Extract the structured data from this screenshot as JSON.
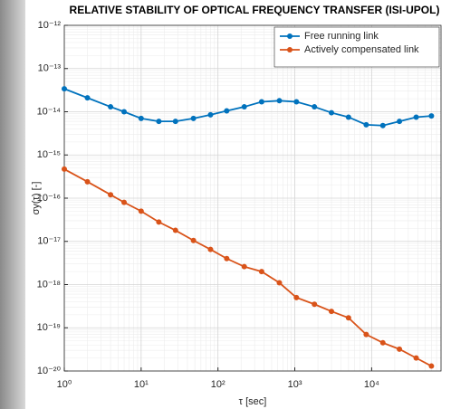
{
  "chart_data": {
    "type": "line",
    "title": "RELATIVE STABILITY OF OPTICAL FREQUENCY TRANSFER (ISI-UPOL)",
    "x_label": "τ [sec]",
    "y_label": "σy(τ) [-]",
    "x": [
      1,
      2,
      4,
      6,
      10,
      17,
      28,
      48,
      80,
      130,
      220,
      370,
      630,
      1050,
      1800,
      3000,
      5000,
      8500,
      14000,
      23000,
      38000,
      60000
    ],
    "series": [
      {
        "name": "Free running link",
        "color": "#0072bd",
        "values": [
          3.4e-14,
          2.1e-14,
          1.3e-14,
          1e-14,
          7e-15,
          6e-15,
          6e-15,
          7e-15,
          8.5e-15,
          1.05e-14,
          1.3e-14,
          1.7e-14,
          1.8e-14,
          1.7e-14,
          1.3e-14,
          9.5e-15,
          7.5e-15,
          5e-15,
          4.8e-15,
          6e-15,
          7.5e-15,
          8e-15
        ]
      },
      {
        "name": "Actively compensated link",
        "color": "#d95319",
        "values": [
          4.7e-16,
          2.4e-16,
          1.2e-16,
          8e-17,
          5e-17,
          2.8e-17,
          1.8e-17,
          1.05e-17,
          6.5e-18,
          4e-18,
          2.6e-18,
          2e-18,
          1.1e-18,
          5e-19,
          3.5e-19,
          2.4e-19,
          1.7e-19,
          7e-20,
          4.5e-20,
          3.2e-20,
          2e-20,
          1.3e-20
        ]
      }
    ],
    "x_log": true,
    "y_log": true,
    "grid": true,
    "minor_grid": true,
    "legend": "top-right",
    "xlim": [
      1,
      80000
    ],
    "ylim": [
      1e-20,
      1e-12
    ],
    "xticks": [
      {
        "value": 1,
        "label": "10⁰"
      },
      {
        "value": 10,
        "label": "10¹"
      },
      {
        "value": 100,
        "label": "10²"
      },
      {
        "value": 1000,
        "label": "10³"
      },
      {
        "value": 10000,
        "label": "10⁴"
      }
    ],
    "yticks": [
      {
        "value": 1e-20,
        "label": "10⁻²⁰"
      },
      {
        "value": 1e-19,
        "label": "10⁻¹⁹"
      },
      {
        "value": 1e-18,
        "label": "10⁻¹⁸"
      },
      {
        "value": 1e-17,
        "label": "10⁻¹⁷"
      },
      {
        "value": 1e-16,
        "label": "10⁻¹⁶"
      },
      {
        "value": 1e-15,
        "label": "10⁻¹⁵"
      },
      {
        "value": 1e-14,
        "label": "10⁻¹⁴"
      },
      {
        "value": 1e-13,
        "label": "10⁻¹³"
      },
      {
        "value": 1e-12,
        "label": "10⁻¹²"
      }
    ]
  }
}
